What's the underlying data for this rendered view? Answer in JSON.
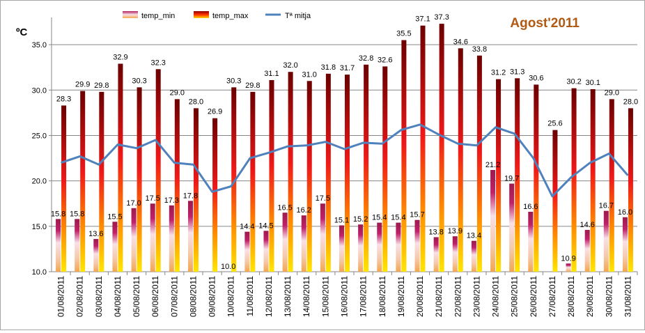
{
  "chart_data": {
    "type": "bar",
    "title": "Agost'2011",
    "ylabel": "ºC",
    "xlabel": "",
    "ylim": [
      10,
      38
    ],
    "yticks": [
      "10.0",
      "15.0",
      "20.0",
      "25.0",
      "30.0",
      "35.0"
    ],
    "ytick_values": [
      10,
      15,
      20,
      25,
      30,
      35
    ],
    "grid": true,
    "legend_position": "top-left",
    "categories": [
      "01/08/2011",
      "02/08/2011",
      "03/08/2011",
      "04/08/2011",
      "05/08/2011",
      "06/08/2011",
      "07/08/2011",
      "08/08/2011",
      "09/08/2011",
      "10/08/2011",
      "11/08/2011",
      "12/08/2011",
      "13/08/2011",
      "14/08/2011",
      "15/08/2011",
      "16/08/2011",
      "17/08/2011",
      "18/08/2011",
      "19/08/2011",
      "20/08/2011",
      "21/08/2011",
      "22/08/2011",
      "23/08/2011",
      "24/08/2011",
      "25/08/2011",
      "26/08/2011",
      "27/08/2011",
      "28/08/2011",
      "29/08/2011",
      "30/08/2011",
      "31/08/2011"
    ],
    "series": [
      {
        "name": "temp_min",
        "type": "bar",
        "values": [
          15.8,
          15.8,
          13.6,
          15.5,
          17.0,
          17.5,
          17.3,
          17.8,
          null,
          10.0,
          14.4,
          14.5,
          16.5,
          16.2,
          17.5,
          15.1,
          15.2,
          15.4,
          15.4,
          15.7,
          13.8,
          13.9,
          13.4,
          21.2,
          19.7,
          16.6,
          null,
          10.9,
          14.6,
          16.7,
          16.0
        ],
        "labels": [
          "15.8",
          "15.8",
          "13.6",
          "15.5",
          "17.0",
          "17.5",
          "17.3",
          "17.8",
          "",
          "10.0",
          "14.4",
          "14.5",
          "16.5",
          "16.2",
          "17.5",
          "15.1",
          "15.2",
          "15.4",
          "15.4",
          "15.7",
          "13.8",
          "13.9",
          "13.4",
          "21.2",
          "19.7",
          "16.6",
          "",
          "10.9",
          "14.6",
          "16.7",
          "16.0"
        ]
      },
      {
        "name": "temp_max",
        "type": "bar",
        "values": [
          28.3,
          29.9,
          29.8,
          32.9,
          30.3,
          32.3,
          29.0,
          28.0,
          26.9,
          30.3,
          29.8,
          31.1,
          32.0,
          31.0,
          31.8,
          31.7,
          32.8,
          32.6,
          35.5,
          37.1,
          37.3,
          34.6,
          33.8,
          31.2,
          31.3,
          30.6,
          25.6,
          30.2,
          30.1,
          29.0,
          28.0
        ],
        "labels": [
          "28.3",
          "29.9",
          "29.8",
          "32.9",
          "30.3",
          "32.3",
          "29.0",
          "28.0",
          "26.9",
          "30.3",
          "29.8",
          "31.1",
          "32.0",
          "31.0",
          "31.8",
          "31.7",
          "32.8",
          "32.6",
          "35.5",
          "37.1",
          "37.3",
          "34.6",
          "33.8",
          "31.2",
          "31.3",
          "30.6",
          "25.6",
          "30.2",
          "30.1",
          "29.0",
          "28.0"
        ]
      },
      {
        "name": "Tª mitja",
        "type": "line",
        "color": "#4f81bd",
        "values": [
          22.0,
          22.7,
          21.8,
          24.0,
          23.6,
          24.5,
          22.0,
          21.8,
          18.8,
          19.4,
          22.5,
          23.1,
          23.8,
          23.9,
          24.3,
          23.5,
          24.2,
          24.1,
          25.6,
          26.2,
          25.1,
          24.1,
          23.9,
          25.9,
          25.2,
          22.5,
          18.3,
          20.4,
          22.0,
          23.0,
          20.6
        ]
      }
    ]
  },
  "colors": {
    "title": "#b05a14",
    "line": "#4f81bd",
    "grid": "#868686",
    "axis": "#868686"
  }
}
